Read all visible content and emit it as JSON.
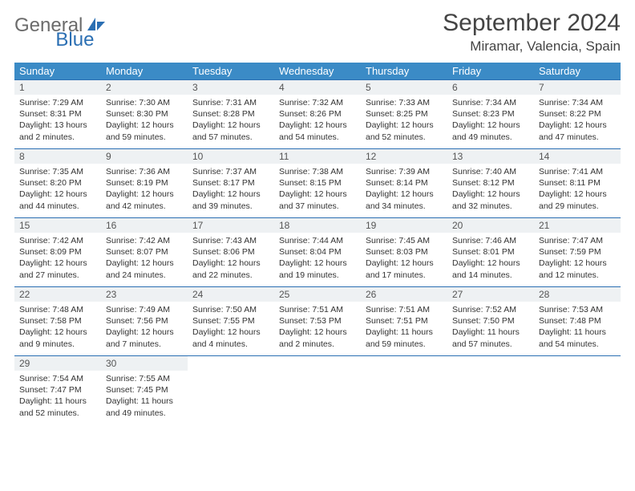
{
  "logo": {
    "part1": "General",
    "part2": "Blue"
  },
  "title": "September 2024",
  "location": "Miramar, Valencia, Spain",
  "colors": {
    "header_bg": "#3b8bc6",
    "border": "#2b6fb3",
    "daynum_bg": "#eef1f3",
    "logo_gray": "#6b6b6b",
    "logo_blue": "#2b6fb3"
  },
  "weekdays": [
    "Sunday",
    "Monday",
    "Tuesday",
    "Wednesday",
    "Thursday",
    "Friday",
    "Saturday"
  ],
  "days": [
    {
      "n": "1",
      "sunrise": "7:29 AM",
      "sunset": "8:31 PM",
      "daylight": "13 hours and 2 minutes."
    },
    {
      "n": "2",
      "sunrise": "7:30 AM",
      "sunset": "8:30 PM",
      "daylight": "12 hours and 59 minutes."
    },
    {
      "n": "3",
      "sunrise": "7:31 AM",
      "sunset": "8:28 PM",
      "daylight": "12 hours and 57 minutes."
    },
    {
      "n": "4",
      "sunrise": "7:32 AM",
      "sunset": "8:26 PM",
      "daylight": "12 hours and 54 minutes."
    },
    {
      "n": "5",
      "sunrise": "7:33 AM",
      "sunset": "8:25 PM",
      "daylight": "12 hours and 52 minutes."
    },
    {
      "n": "6",
      "sunrise": "7:34 AM",
      "sunset": "8:23 PM",
      "daylight": "12 hours and 49 minutes."
    },
    {
      "n": "7",
      "sunrise": "7:34 AM",
      "sunset": "8:22 PM",
      "daylight": "12 hours and 47 minutes."
    },
    {
      "n": "8",
      "sunrise": "7:35 AM",
      "sunset": "8:20 PM",
      "daylight": "12 hours and 44 minutes."
    },
    {
      "n": "9",
      "sunrise": "7:36 AM",
      "sunset": "8:19 PM",
      "daylight": "12 hours and 42 minutes."
    },
    {
      "n": "10",
      "sunrise": "7:37 AM",
      "sunset": "8:17 PM",
      "daylight": "12 hours and 39 minutes."
    },
    {
      "n": "11",
      "sunrise": "7:38 AM",
      "sunset": "8:15 PM",
      "daylight": "12 hours and 37 minutes."
    },
    {
      "n": "12",
      "sunrise": "7:39 AM",
      "sunset": "8:14 PM",
      "daylight": "12 hours and 34 minutes."
    },
    {
      "n": "13",
      "sunrise": "7:40 AM",
      "sunset": "8:12 PM",
      "daylight": "12 hours and 32 minutes."
    },
    {
      "n": "14",
      "sunrise": "7:41 AM",
      "sunset": "8:11 PM",
      "daylight": "12 hours and 29 minutes."
    },
    {
      "n": "15",
      "sunrise": "7:42 AM",
      "sunset": "8:09 PM",
      "daylight": "12 hours and 27 minutes."
    },
    {
      "n": "16",
      "sunrise": "7:42 AM",
      "sunset": "8:07 PM",
      "daylight": "12 hours and 24 minutes."
    },
    {
      "n": "17",
      "sunrise": "7:43 AM",
      "sunset": "8:06 PM",
      "daylight": "12 hours and 22 minutes."
    },
    {
      "n": "18",
      "sunrise": "7:44 AM",
      "sunset": "8:04 PM",
      "daylight": "12 hours and 19 minutes."
    },
    {
      "n": "19",
      "sunrise": "7:45 AM",
      "sunset": "8:03 PM",
      "daylight": "12 hours and 17 minutes."
    },
    {
      "n": "20",
      "sunrise": "7:46 AM",
      "sunset": "8:01 PM",
      "daylight": "12 hours and 14 minutes."
    },
    {
      "n": "21",
      "sunrise": "7:47 AM",
      "sunset": "7:59 PM",
      "daylight": "12 hours and 12 minutes."
    },
    {
      "n": "22",
      "sunrise": "7:48 AM",
      "sunset": "7:58 PM",
      "daylight": "12 hours and 9 minutes."
    },
    {
      "n": "23",
      "sunrise": "7:49 AM",
      "sunset": "7:56 PM",
      "daylight": "12 hours and 7 minutes."
    },
    {
      "n": "24",
      "sunrise": "7:50 AM",
      "sunset": "7:55 PM",
      "daylight": "12 hours and 4 minutes."
    },
    {
      "n": "25",
      "sunrise": "7:51 AM",
      "sunset": "7:53 PM",
      "daylight": "12 hours and 2 minutes."
    },
    {
      "n": "26",
      "sunrise": "7:51 AM",
      "sunset": "7:51 PM",
      "daylight": "11 hours and 59 minutes."
    },
    {
      "n": "27",
      "sunrise": "7:52 AM",
      "sunset": "7:50 PM",
      "daylight": "11 hours and 57 minutes."
    },
    {
      "n": "28",
      "sunrise": "7:53 AM",
      "sunset": "7:48 PM",
      "daylight": "11 hours and 54 minutes."
    },
    {
      "n": "29",
      "sunrise": "7:54 AM",
      "sunset": "7:47 PM",
      "daylight": "11 hours and 52 minutes."
    },
    {
      "n": "30",
      "sunrise": "7:55 AM",
      "sunset": "7:45 PM",
      "daylight": "11 hours and 49 minutes."
    }
  ],
  "labels": {
    "sunrise": "Sunrise:",
    "sunset": "Sunset:",
    "daylight": "Daylight:"
  }
}
